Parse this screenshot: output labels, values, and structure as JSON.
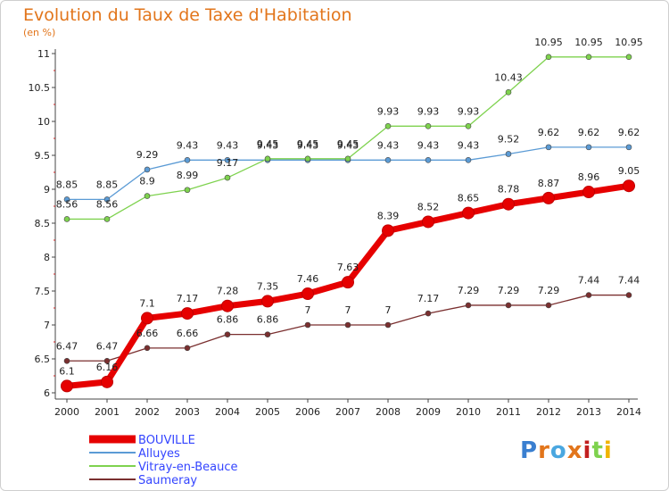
{
  "chart_data": {
    "type": "line",
    "title": "Evolution du Taux de Taxe d'Habitation",
    "subtitle": "(en %)",
    "x": [
      "2000",
      "2001",
      "2002",
      "2003",
      "2004",
      "2005",
      "2006",
      "2007",
      "2008",
      "2009",
      "2010",
      "2011",
      "2012",
      "2013",
      "2014"
    ],
    "ylim": [
      6,
      11
    ],
    "yticks": [
      "6",
      "6.5",
      "7",
      "7.5",
      "8",
      "8.5",
      "9",
      "9.5",
      "10",
      "10.5",
      "11"
    ],
    "grid": false,
    "legend_position": "bottom-left",
    "series": [
      {
        "name": "BOUVILLE",
        "color": "#e60000",
        "values": [
          6.1,
          6.16,
          7.1,
          7.17,
          7.28,
          7.35,
          7.46,
          7.63,
          8.39,
          8.52,
          8.65,
          8.78,
          8.87,
          8.96,
          9.05
        ],
        "labels": [
          "6.1",
          "6.16",
          "7.1",
          "7.17",
          "7.28",
          "7.35",
          "7.46",
          "7.63",
          "8.39",
          "8.52",
          "8.65",
          "8.78",
          "8.87",
          "8.96",
          "9.05"
        ]
      },
      {
        "name": "Alluyes",
        "color": "#5b9bd5",
        "values": [
          8.85,
          8.85,
          9.29,
          9.43,
          9.43,
          9.43,
          9.43,
          9.43,
          9.43,
          9.43,
          9.43,
          9.52,
          9.62,
          9.62,
          9.62
        ],
        "labels": [
          "8.85",
          "8.85",
          "9.29",
          "9.43",
          "9.43",
          "9.43",
          "9.43",
          "9.43",
          "9.43",
          "9.43",
          "9.43",
          "9.52",
          "9.62",
          "9.62",
          "9.62"
        ]
      },
      {
        "name": "Vitray-en-Beauce",
        "color": "#7ed24e",
        "values": [
          8.56,
          8.56,
          8.9,
          8.99,
          9.17,
          9.45,
          9.45,
          9.45,
          9.93,
          9.93,
          9.93,
          10.43,
          10.95,
          10.95,
          10.95
        ],
        "labels": [
          "8.56",
          "8.56",
          "8.9",
          "8.99",
          "9.17",
          "9.45",
          "9.45",
          "9.45",
          "9.93",
          "9.93",
          "9.93",
          "10.43",
          "10.95",
          "10.95",
          "10.95"
        ]
      },
      {
        "name": "Saumeray",
        "color": "#7a2f2f",
        "values": [
          6.47,
          6.47,
          6.66,
          6.66,
          6.86,
          6.86,
          7,
          7,
          7,
          7.17,
          7.29,
          7.29,
          7.29,
          7.44,
          7.44
        ],
        "labels": [
          "6.47",
          "6.47",
          "6.66",
          "6.66",
          "6.86",
          "6.86",
          "7",
          "7",
          "7",
          "7.17",
          "7.29",
          "7.29",
          "7.29",
          "7.44",
          "7.44"
        ]
      }
    ]
  },
  "logo": {
    "text": "Prox•iti"
  }
}
